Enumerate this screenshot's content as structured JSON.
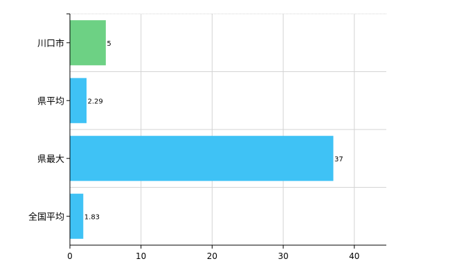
{
  "chart_data": {
    "type": "bar",
    "orientation": "horizontal",
    "categories": [
      "川口市",
      "県平均",
      "県最大",
      "全国平均"
    ],
    "values": [
      5,
      2.29,
      37,
      1.83
    ],
    "data_labels": [
      "5",
      "2.29",
      "37",
      "1.83"
    ],
    "bar_colors": [
      "#6dd184",
      "#3fc2f5",
      "#3fc2f5",
      "#3fc2f5"
    ],
    "xlim": [
      0,
      44.5
    ],
    "x_ticks": [
      0,
      10,
      20,
      30,
      40
    ],
    "x_tick_labels": [
      "0",
      "10",
      "20",
      "30",
      "40"
    ],
    "grid": true,
    "grid_color": "#d3d3d3",
    "title": "",
    "xlabel": "",
    "ylabel": ""
  }
}
